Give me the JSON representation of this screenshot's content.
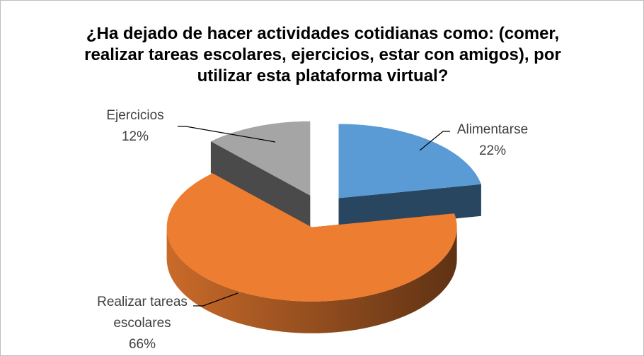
{
  "chart_data": {
    "type": "pie3d",
    "title": "¿Ha dejado de hacer actividades cotidianas como: (comer, realizar tareas escolares, ejercicios, estar con amigos), por utilizar esta plataforma virtual?",
    "categories": [
      "Alimentarse",
      "Realizar tareas escolares",
      "Ejercicios"
    ],
    "values": [
      22,
      66,
      12
    ],
    "value_labels": [
      "22%",
      "66%",
      "12%"
    ],
    "colors": [
      "#5b9bd5",
      "#ed7d31",
      "#a5a5a5"
    ]
  }
}
